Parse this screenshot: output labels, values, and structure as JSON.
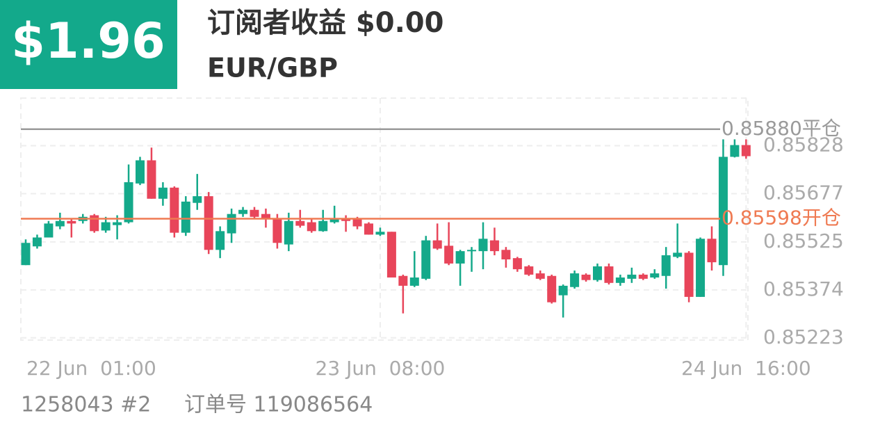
{
  "header": {
    "profit": "$1.96",
    "title": "订阅者收益 $0.00",
    "symbol": "EUR/GBP"
  },
  "chart_data": {
    "type": "candlestick",
    "categories": [
      "22 Jun  01:00",
      null,
      null,
      null,
      null,
      null,
      null,
      null,
      null,
      null,
      null,
      null,
      null,
      null,
      null,
      null,
      null,
      null,
      null,
      null,
      null,
      null,
      null,
      null,
      null,
      null,
      null,
      null,
      null,
      null,
      null,
      "23 Jun  08:00",
      null,
      null,
      null,
      null,
      null,
      null,
      null,
      null,
      null,
      null,
      null,
      null,
      null,
      null,
      null,
      null,
      null,
      null,
      null,
      null,
      null,
      null,
      null,
      null,
      null,
      null,
      null,
      null,
      null,
      null,
      null,
      "24 Jun  16:00"
    ],
    "open": [
      0.85452,
      0.85511,
      0.85539,
      0.85574,
      0.85591,
      0.85591,
      0.85609,
      0.85561,
      0.85578,
      0.85587,
      0.85709,
      0.85782,
      0.85661,
      0.85696,
      0.85554,
      0.85648,
      0.85669,
      0.855,
      0.85552,
      0.85613,
      0.85626,
      0.85613,
      0.856,
      0.85517,
      0.85591,
      0.85587,
      0.85559,
      0.85587,
      0.856,
      0.85596,
      0.85583,
      0.85548,
      0.85557,
      0.85418,
      0.85387,
      0.85409,
      0.8553,
      0.85513,
      0.85457,
      0.85496,
      0.85496,
      0.8553,
      0.855,
      0.85474,
      0.85448,
      0.85426,
      0.85418,
      0.85357,
      0.85383,
      0.85422,
      0.85405,
      0.85448,
      0.85396,
      0.85409,
      0.85422,
      0.85413,
      0.85418,
      0.85478,
      0.85491,
      0.85352,
      0.85535,
      0.85452,
      0.85793,
      0.8583
    ],
    "high": [
      0.85533,
      0.85548,
      0.85591,
      0.85617,
      0.856,
      0.85613,
      0.85613,
      0.85604,
      0.85609,
      0.85769,
      0.85793,
      0.85822,
      0.85713,
      0.857,
      0.85669,
      0.85739,
      0.85682,
      0.85574,
      0.8563,
      0.85635,
      0.85635,
      0.8563,
      0.85613,
      0.85617,
      0.85626,
      0.85596,
      0.85626,
      0.85639,
      0.85609,
      0.85604,
      0.85587,
      0.8557,
      0.85557,
      0.85422,
      0.85496,
      0.85544,
      0.85583,
      0.85587,
      0.855,
      0.85509,
      0.85587,
      0.8557,
      0.85509,
      0.85478,
      0.85452,
      0.85435,
      0.85422,
      0.85391,
      0.85435,
      0.85426,
      0.85457,
      0.85457,
      0.85422,
      0.85444,
      0.85426,
      0.85439,
      0.85509,
      0.85583,
      0.85496,
      0.85539,
      0.85574,
      0.85848,
      0.85848,
      0.85848
    ],
    "low": [
      0.85452,
      0.85504,
      0.85539,
      0.85565,
      0.85539,
      0.85583,
      0.85554,
      0.85554,
      0.85533,
      0.85583,
      0.85704,
      0.85661,
      0.85639,
      0.85539,
      0.85544,
      0.85626,
      0.85487,
      0.85474,
      0.85522,
      0.85604,
      0.85598,
      0.8557,
      0.85504,
      0.85496,
      0.8557,
      0.85554,
      0.85557,
      0.85583,
      0.85557,
      0.85565,
      0.85548,
      0.85544,
      0.85413,
      0.853,
      0.85383,
      0.85405,
      0.855,
      0.85452,
      0.85387,
      0.85431,
      0.85439,
      0.85483,
      0.85444,
      0.85431,
      0.85418,
      0.85405,
      0.85331,
      0.85287,
      0.85378,
      0.854,
      0.854,
      0.85391,
      0.85387,
      0.85396,
      0.85405,
      0.85409,
      0.85378,
      0.85474,
      0.85335,
      0.85352,
      0.85435,
      0.85418,
      0.85791,
      0.85787
    ],
    "close": [
      0.85522,
      0.85539,
      0.85583,
      0.85591,
      0.85583,
      0.85604,
      0.85559,
      0.85587,
      0.85587,
      0.85713,
      0.85782,
      0.85661,
      0.85696,
      0.85554,
      0.85652,
      0.85669,
      0.855,
      0.85559,
      0.85613,
      0.85626,
      0.85604,
      0.856,
      0.85522,
      0.85591,
      0.85576,
      0.85559,
      0.85591,
      0.85596,
      0.85591,
      0.85574,
      0.85548,
      0.85557,
      0.85413,
      0.85387,
      0.85413,
      0.8553,
      0.85504,
      0.85457,
      0.85496,
      0.855,
      0.85535,
      0.85496,
      0.8547,
      0.85439,
      0.85422,
      0.85409,
      0.85335,
      0.85387,
      0.85426,
      0.85405,
      0.85448,
      0.85396,
      0.85413,
      0.85422,
      0.85409,
      0.85426,
      0.85483,
      0.85491,
      0.85352,
      0.85535,
      0.85461,
      0.85793,
      0.8583,
      0.85795
    ],
    "up_color": "#14a98a",
    "down_color": "#e8455a",
    "ylim": [
      0.85216,
      0.85978
    ],
    "yticks": [
      0.85223,
      0.85374,
      0.85525,
      0.85677,
      0.85828
    ],
    "grid": true,
    "lines": [
      {
        "value": 0.8588,
        "label": "0.85880平仓",
        "color": "#9a9a9a"
      },
      {
        "value": 0.85598,
        "label": "0.85598开仓",
        "color": "#ef7a52"
      }
    ]
  },
  "footer": {
    "account": "1258043 #2",
    "order": "订单号 119086564"
  }
}
